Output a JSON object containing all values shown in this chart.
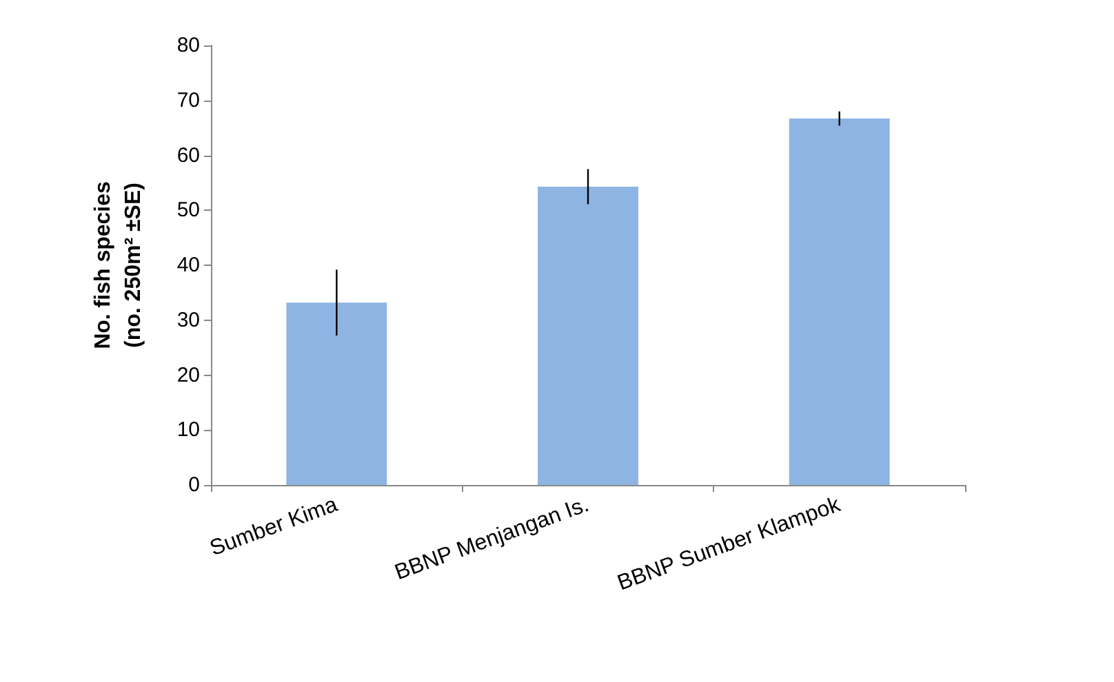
{
  "chart_data": {
    "type": "bar",
    "ylabel": "No. fish species\n(no. 250m² ±SE)",
    "categories": [
      "Sumber Kima",
      "BBNP Menjangan Is.",
      "BBNP Sumber Klampok"
    ],
    "values": [
      33.2,
      54.3,
      66.7
    ],
    "errors": [
      6,
      3.2,
      1.3
    ],
    "color": "#8eb4e3",
    "ylim": [
      0,
      80
    ],
    "yticks": [
      0,
      10,
      20,
      30,
      40,
      50,
      60,
      70,
      80
    ],
    "grid": false
  }
}
